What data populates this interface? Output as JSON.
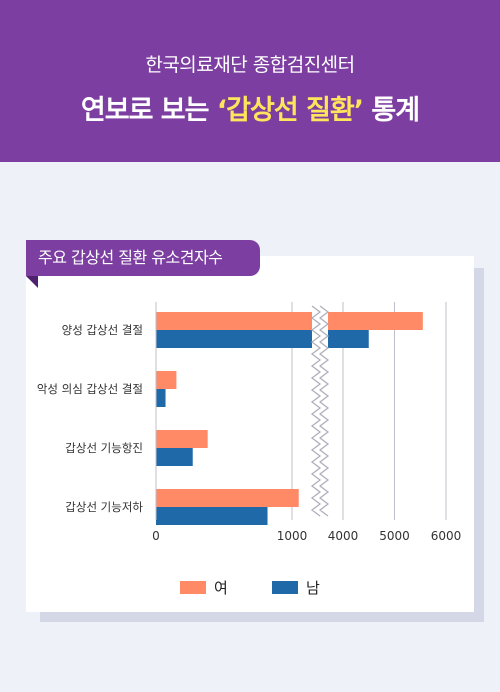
{
  "header": {
    "org": "한국의료재단 종합검진센터",
    "title_main": "연보로 보는 ",
    "title_highlight": "‘갑상선 질환’",
    "title_end": " 통계"
  },
  "colors": {
    "header_bg": "#7c3fa1",
    "highlight": "#ffe55c",
    "female": "#ff8a65",
    "male": "#1f69a8"
  },
  "chart_data": {
    "type": "bar",
    "orientation": "horizontal",
    "title": "주요 갑상선 질환 유소견자수",
    "categories": [
      "양성 갑상선 결절",
      "악성 의심 갑상선 결절",
      "갑상선 기능항진",
      "갑상선 기능저하"
    ],
    "series": [
      {
        "name": "여",
        "values": [
          5550,
          150,
          380,
          1120
        ]
      },
      {
        "name": "남",
        "values": [
          4500,
          70,
          270,
          820
        ]
      }
    ],
    "x_ticks": [
      "0",
      "1000",
      "4000",
      "5000",
      "6000"
    ],
    "axis_break": {
      "from": 1500,
      "to": 3500
    },
    "xlim": [
      0,
      6000
    ],
    "grid": true,
    "legend_position": "bottom"
  }
}
